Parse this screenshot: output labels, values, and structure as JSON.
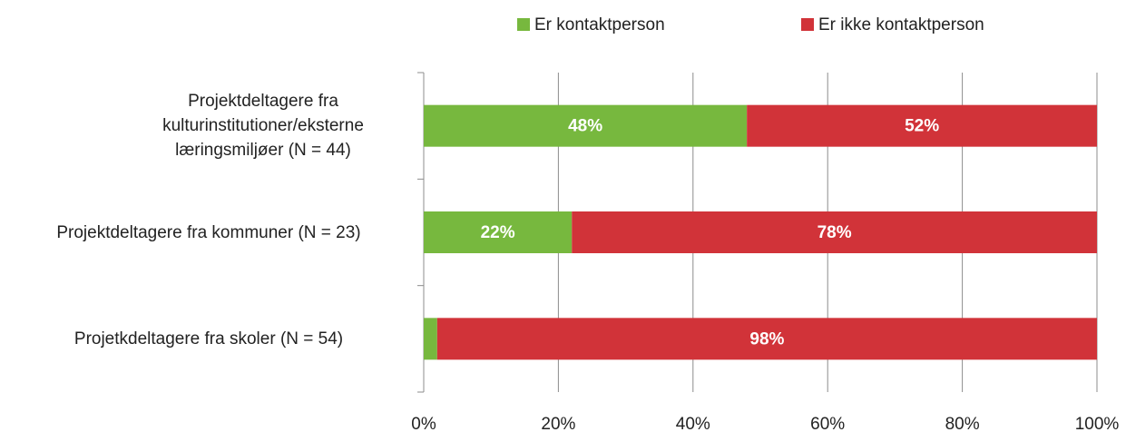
{
  "chart_data": {
    "type": "stacked-barh",
    "categories": [
      "Projektdeltagere fra kulturinstitutioner/eksterne læringsmiljøer (N = 44)",
      "Projektdeltagere fra kommuner (N = 23)",
      "Projetkdeltagere fra skoler (N = 54)"
    ],
    "series": [
      {
        "name": "Er kontaktperson",
        "color": "#77b83e",
        "values": [
          48,
          22,
          2
        ],
        "value_labels": [
          "48%",
          "22%",
          null
        ]
      },
      {
        "name": "Er ikke kontaktperson",
        "color": "#d13339",
        "values": [
          52,
          78,
          98
        ],
        "value_labels": [
          "52%",
          "78%",
          "98%"
        ]
      }
    ],
    "xlim": [
      0,
      100
    ],
    "xticks": [
      {
        "value": 0,
        "label": "0%"
      },
      {
        "value": 20,
        "label": "20%"
      },
      {
        "value": 40,
        "label": "40%"
      },
      {
        "value": 60,
        "label": "60%"
      },
      {
        "value": 80,
        "label": "80%"
      },
      {
        "value": 100,
        "label": "100%"
      }
    ],
    "grid": true,
    "legend": "top"
  }
}
